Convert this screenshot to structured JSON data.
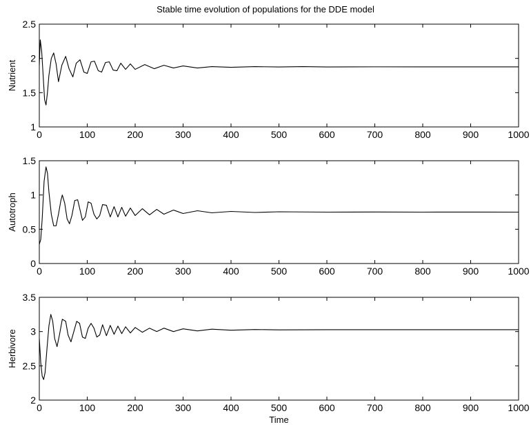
{
  "figure": {
    "title": "Stable time evolution of populations for the DDE model"
  },
  "chart_data": [
    {
      "type": "line",
      "ylabel": "Nutrient",
      "xlabel": "",
      "xlim": [
        0,
        1000
      ],
      "ylim": [
        1,
        2.5
      ],
      "xticks": [
        0,
        100,
        200,
        300,
        400,
        500,
        600,
        700,
        800,
        900,
        1000
      ],
      "xtick_labels": [
        "0",
        "100",
        "200",
        "300",
        "400",
        "500",
        "600",
        "700",
        "800",
        "900",
        "1000"
      ],
      "yticks": [
        1,
        1.5,
        2,
        2.5
      ],
      "ytick_labels": [
        "1",
        "1.5",
        "2",
        "2.5"
      ],
      "grid": false,
      "series": [
        {
          "color": "#000000",
          "x": [
            0,
            2,
            5,
            8,
            11,
            14,
            17,
            20,
            25,
            30,
            35,
            40,
            47,
            55,
            62,
            70,
            77,
            85,
            93,
            100,
            108,
            115,
            123,
            130,
            138,
            146,
            154,
            162,
            170,
            180,
            190,
            200,
            220,
            240,
            260,
            280,
            300,
            330,
            360,
            400,
            450,
            500,
            550,
            600,
            700,
            800,
            900,
            1000
          ],
          "y": [
            1.9,
            2.27,
            2.1,
            1.75,
            1.4,
            1.32,
            1.5,
            1.75,
            2.0,
            2.08,
            1.92,
            1.66,
            1.9,
            2.03,
            1.85,
            1.73,
            1.93,
            1.98,
            1.8,
            1.78,
            1.95,
            1.96,
            1.82,
            1.8,
            1.94,
            1.95,
            1.83,
            1.82,
            1.93,
            1.84,
            1.92,
            1.84,
            1.91,
            1.85,
            1.9,
            1.86,
            1.89,
            1.86,
            1.88,
            1.87,
            1.88,
            1.875,
            1.88,
            1.875,
            1.877,
            1.876,
            1.876,
            1.876
          ]
        }
      ]
    },
    {
      "type": "line",
      "ylabel": "Autotroph",
      "xlabel": "",
      "xlim": [
        0,
        1000
      ],
      "ylim": [
        0,
        1.5
      ],
      "xticks": [
        0,
        100,
        200,
        300,
        400,
        500,
        600,
        700,
        800,
        900,
        1000
      ],
      "xtick_labels": [
        "0",
        "100",
        "200",
        "300",
        "400",
        "500",
        "600",
        "700",
        "800",
        "900",
        "1000"
      ],
      "yticks": [
        0,
        0.5,
        1,
        1.5
      ],
      "ytick_labels": [
        "0",
        "0.5",
        "1",
        "1.5"
      ],
      "grid": false,
      "series": [
        {
          "color": "#000000",
          "x": [
            0,
            3,
            6,
            10,
            14,
            17,
            20,
            25,
            30,
            35,
            40,
            45,
            48,
            53,
            58,
            63,
            68,
            74,
            80,
            85,
            90,
            96,
            102,
            108,
            114,
            120,
            126,
            132,
            140,
            148,
            156,
            164,
            172,
            180,
            190,
            200,
            215,
            230,
            245,
            260,
            280,
            300,
            330,
            360,
            400,
            450,
            500,
            600,
            700,
            800,
            900,
            1000
          ],
          "y": [
            0.28,
            0.35,
            0.65,
            1.2,
            1.41,
            1.32,
            1.05,
            0.72,
            0.55,
            0.55,
            0.72,
            0.92,
            1.0,
            0.88,
            0.65,
            0.58,
            0.7,
            0.92,
            0.93,
            0.78,
            0.63,
            0.68,
            0.9,
            0.88,
            0.72,
            0.65,
            0.7,
            0.86,
            0.85,
            0.68,
            0.83,
            0.68,
            0.82,
            0.69,
            0.81,
            0.7,
            0.8,
            0.71,
            0.79,
            0.72,
            0.78,
            0.73,
            0.77,
            0.74,
            0.76,
            0.745,
            0.755,
            0.75,
            0.752,
            0.75,
            0.751,
            0.75
          ]
        }
      ]
    },
    {
      "type": "line",
      "ylabel": "Herbivore",
      "xlabel": "Time",
      "xlim": [
        0,
        1000
      ],
      "ylim": [
        2,
        3.5
      ],
      "xticks": [
        0,
        100,
        200,
        300,
        400,
        500,
        600,
        700,
        800,
        900,
        1000
      ],
      "xtick_labels": [
        "0",
        "100",
        "200",
        "300",
        "400",
        "500",
        "600",
        "700",
        "800",
        "900",
        "1000"
      ],
      "yticks": [
        2,
        2.5,
        3,
        3.5
      ],
      "ytick_labels": [
        "2",
        "2.5",
        "3",
        "3.5"
      ],
      "grid": false,
      "series": [
        {
          "color": "#000000",
          "x": [
            0,
            3,
            6,
            9,
            12,
            16,
            20,
            24,
            28,
            32,
            37,
            42,
            48,
            55,
            60,
            66,
            72,
            78,
            84,
            90,
            96,
            102,
            108,
            114,
            120,
            126,
            132,
            140,
            148,
            156,
            164,
            172,
            180,
            190,
            200,
            215,
            230,
            245,
            260,
            280,
            300,
            330,
            360,
            400,
            450,
            500,
            600,
            700,
            800,
            900,
            1000
          ],
          "y": [
            2.9,
            2.55,
            2.35,
            2.3,
            2.4,
            2.75,
            3.08,
            3.25,
            3.15,
            2.9,
            2.78,
            2.95,
            3.18,
            3.15,
            2.95,
            2.85,
            3.0,
            3.15,
            3.12,
            2.92,
            2.9,
            3.05,
            3.12,
            3.05,
            2.92,
            2.95,
            3.1,
            2.94,
            3.09,
            2.96,
            3.08,
            2.97,
            3.07,
            2.98,
            3.06,
            2.99,
            3.05,
            3.0,
            3.05,
            3.0,
            3.04,
            3.01,
            3.035,
            3.02,
            3.03,
            3.025,
            3.028,
            3.027,
            3.027,
            3.027,
            3.027
          ]
        }
      ]
    }
  ]
}
